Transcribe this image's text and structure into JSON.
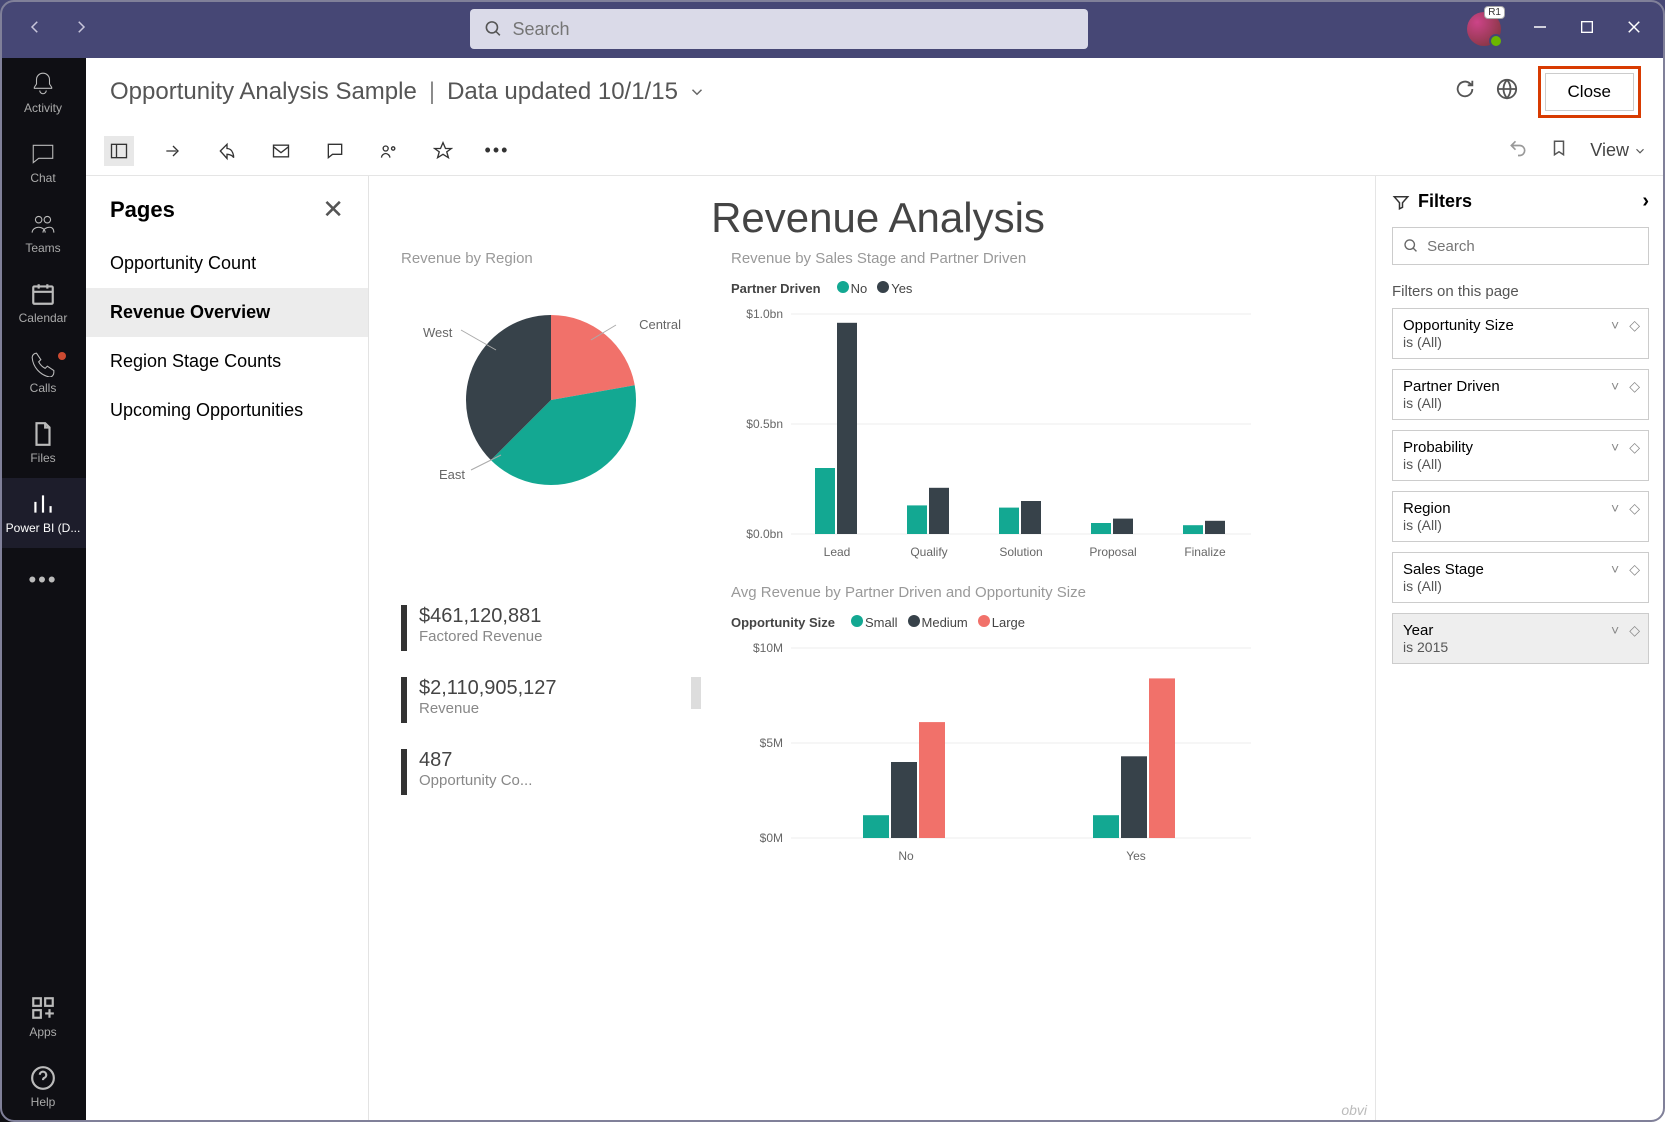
{
  "titlebar": {
    "search_placeholder": "Search",
    "avatar_initials": "R1"
  },
  "rail": {
    "items": [
      {
        "label": "Activity"
      },
      {
        "label": "Chat"
      },
      {
        "label": "Teams"
      },
      {
        "label": "Calendar"
      },
      {
        "label": "Calls",
        "dot": true
      },
      {
        "label": "Files"
      },
      {
        "label": "Power BI (D..."
      }
    ],
    "bottom": [
      {
        "label": "Apps"
      },
      {
        "label": "Help"
      }
    ]
  },
  "header": {
    "title": "Opportunity Analysis Sample",
    "subtitle": "Data updated 10/1/15",
    "close": "Close"
  },
  "toolbar": {
    "view": "View"
  },
  "pages": {
    "title": "Pages",
    "items": [
      "Opportunity Count",
      "Revenue Overview",
      "Region Stage Counts",
      "Upcoming Opportunities"
    ],
    "active_index": 1
  },
  "report": {
    "title": "Revenue Analysis",
    "pie": {
      "sect_title": "Revenue by Region",
      "labels": [
        "West",
        "Central",
        "East"
      ],
      "angles": [
        0,
        80,
        225,
        360
      ],
      "colors": [
        "#f1716a",
        "#13a892",
        "#37424a"
      ]
    },
    "bar1": {
      "sect_title": "Revenue by Sales Stage and Partner Driven",
      "legend_title": "Partner Driven",
      "series": [
        {
          "name": "No",
          "color": "#13a892"
        },
        {
          "name": "Yes",
          "color": "#37424a"
        }
      ],
      "categories": [
        "Lead",
        "Qualify",
        "Solution",
        "Proposal",
        "Finalize"
      ],
      "ylabels": [
        "$0.0bn",
        "$0.5bn",
        "$1.0bn"
      ],
      "ymax": 1.0,
      "values_no": [
        0.3,
        0.13,
        0.12,
        0.05,
        0.04
      ],
      "values_yes": [
        0.96,
        0.21,
        0.15,
        0.07,
        0.06
      ]
    },
    "bar2": {
      "sect_title": "Avg Revenue by Partner Driven and Opportunity Size",
      "legend_title": "Opportunity Size",
      "series": [
        {
          "name": "Small",
          "color": "#13a892"
        },
        {
          "name": "Medium",
          "color": "#37424a"
        },
        {
          "name": "Large",
          "color": "#f1716a"
        }
      ],
      "categories": [
        "No",
        "Yes"
      ],
      "ylabels": [
        "$0M",
        "$5M",
        "$10M"
      ],
      "ymax": 10,
      "values": [
        [
          1.2,
          4.0,
          6.1
        ],
        [
          1.2,
          4.3,
          8.4
        ]
      ]
    },
    "kpis": [
      {
        "value": "$461,120,881",
        "label": "Factored Revenue"
      },
      {
        "value": "$2,110,905,127",
        "label": "Revenue",
        "spark": true
      },
      {
        "value": "487",
        "label": "Opportunity Co..."
      }
    ],
    "watermark": "obvi"
  },
  "filters": {
    "title": "Filters",
    "search_placeholder": "Search",
    "section_label": "Filters on this page",
    "cards": [
      {
        "name": "Opportunity Size",
        "val": "is (All)"
      },
      {
        "name": "Partner Driven",
        "val": "is (All)"
      },
      {
        "name": "Probability",
        "val": "is (All)"
      },
      {
        "name": "Region",
        "val": "is (All)"
      },
      {
        "name": "Sales Stage",
        "val": "is (All)"
      },
      {
        "name": "Year",
        "val": "is 2015",
        "active": true
      }
    ]
  }
}
